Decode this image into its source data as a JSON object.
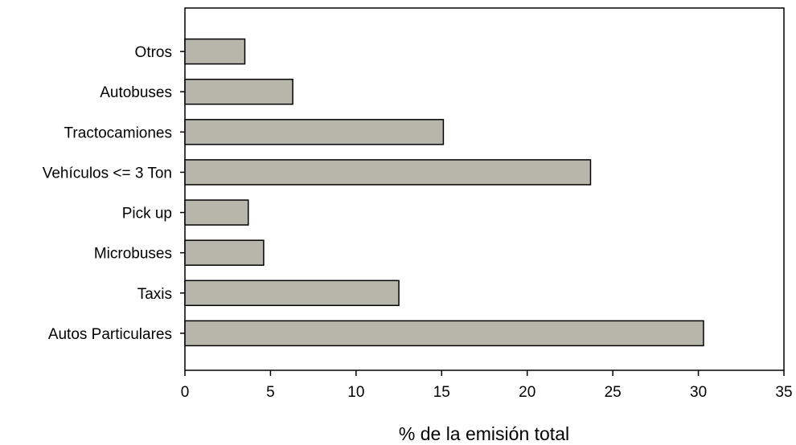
{
  "chart_data": {
    "type": "bar",
    "orientation": "horizontal",
    "categories": [
      "Autos Particulares",
      "Taxis",
      "Microbuses",
      "Pick up",
      "Vehículos <= 3 Ton",
      "Tractocamiones",
      "Autobuses",
      "Otros"
    ],
    "values": [
      30.3,
      12.5,
      4.6,
      3.7,
      23.7,
      15.1,
      6.3,
      3.5
    ],
    "title": "",
    "xlabel": "% de la emisión total",
    "ylabel": "",
    "xlim": [
      0,
      35
    ],
    "xticks": [
      "0",
      "5",
      "10",
      "15",
      "20",
      "25",
      "30",
      "35"
    ],
    "grid": false,
    "legend": "none",
    "colors": {
      "bar_fill": "#b7b6ab",
      "bar_stroke": "#000000",
      "axis": "#000000",
      "background": "#ffffff"
    }
  }
}
